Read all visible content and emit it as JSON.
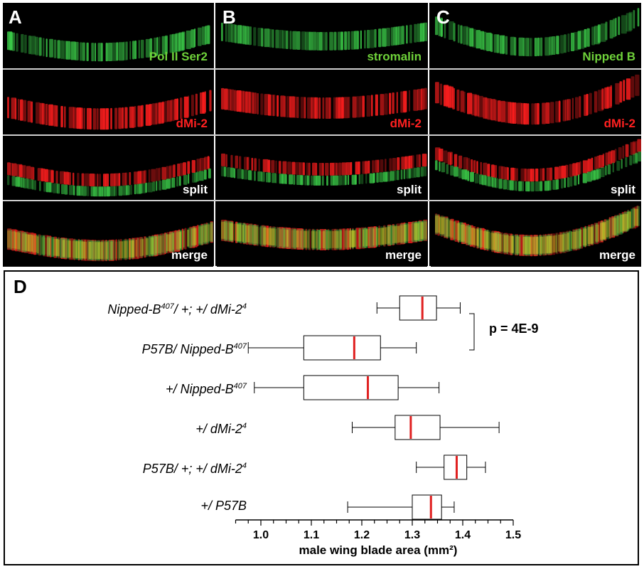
{
  "panels": [
    {
      "letter": "A",
      "rows": [
        {
          "label": "Pol II Ser2",
          "label_color": "#6fd23a",
          "channel": "green"
        },
        {
          "label": "dMi-2",
          "label_color": "#ff2020",
          "channel": "red"
        },
        {
          "label": "split",
          "label_color": "#ffffff",
          "channel": "split"
        },
        {
          "label": "merge",
          "label_color": "#ffffff",
          "channel": "merge"
        }
      ]
    },
    {
      "letter": "B",
      "rows": [
        {
          "label": "stromalin",
          "label_color": "#6fd23a",
          "channel": "green"
        },
        {
          "label": "dMi-2",
          "label_color": "#ff2020",
          "channel": "red"
        },
        {
          "label": "split",
          "label_color": "#ffffff",
          "channel": "split"
        },
        {
          "label": "merge",
          "label_color": "#ffffff",
          "channel": "merge"
        }
      ]
    },
    {
      "letter": "C",
      "rows": [
        {
          "label": "Nipped B",
          "label_color": "#6fd23a",
          "channel": "green"
        },
        {
          "label": "dMi-2",
          "label_color": "#ff2020",
          "channel": "red"
        },
        {
          "label": "split",
          "label_color": "#ffffff",
          "channel": "split"
        },
        {
          "label": "merge",
          "label_color": "#ffffff",
          "channel": "merge"
        }
      ]
    }
  ],
  "colors": {
    "green": "#3ccf4a",
    "red": "#ff1e1e",
    "yellow": "#d8d82a",
    "median": "#e02020"
  },
  "panel_d": {
    "letter": "D",
    "p_value": "p = 4E-9"
  },
  "chart_data": {
    "type": "boxplot",
    "orientation": "horizontal",
    "xlabel": "male wing blade area (mm²)",
    "xlim": [
      0.95,
      1.5
    ],
    "xticks": [
      "1.0",
      "1.1",
      "1.2",
      "1.3",
      "1.4",
      "1.5"
    ],
    "groups": [
      {
        "label_parts": [
          "Nipped-B",
          "407",
          "/ +; +/ dMi-2",
          "4"
        ],
        "min": 1.23,
        "q1": 1.275,
        "median": 1.32,
        "q3": 1.348,
        "max": 1.395
      },
      {
        "label_parts": [
          "P57B/ Nipped-B",
          "407",
          "",
          ""
        ],
        "min": 0.975,
        "q1": 1.085,
        "median": 1.185,
        "q3": 1.237,
        "max": 1.308
      },
      {
        "label_parts": [
          "+/ Nipped-B",
          "407",
          "",
          ""
        ],
        "min": 0.987,
        "q1": 1.085,
        "median": 1.212,
        "q3": 1.272,
        "max": 1.353
      },
      {
        "label_parts": [
          "+/ dMi-2",
          "4",
          "",
          ""
        ],
        "min": 1.181,
        "q1": 1.266,
        "median": 1.297,
        "q3": 1.355,
        "max": 1.472
      },
      {
        "label_parts": [
          "P57B/ +; +/ dMi-2",
          "4",
          "",
          ""
        ],
        "min": 1.308,
        "q1": 1.363,
        "median": 1.388,
        "q3": 1.408,
        "max": 1.445
      },
      {
        "label_parts": [
          "+/ P57B",
          "",
          "",
          ""
        ],
        "min": 1.172,
        "q1": 1.3,
        "median": 1.337,
        "q3": 1.358,
        "max": 1.383
      }
    ],
    "comparison": {
      "groups": [
        0,
        1
      ],
      "label": "p = 4E-9"
    }
  }
}
